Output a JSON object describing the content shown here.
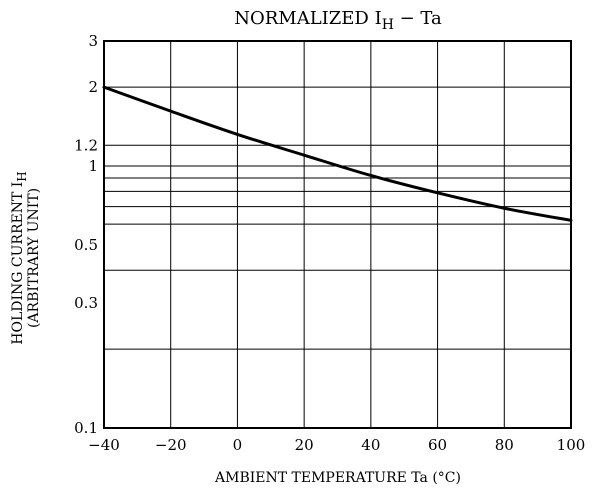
{
  "chart_data": {
    "type": "line",
    "title": "NORMALIZED I",
    "title_sub": "H",
    "title_suffix": " − Ta",
    "xlabel": "AMBIENT TEMPERATURE   Ta   (°C)",
    "ylabel_line1": "HOLDING CURRENT   I",
    "ylabel_line1_sub": "H",
    "ylabel_line2": "(ARBITRARY UNIT)",
    "xlim": [
      -40,
      100
    ],
    "ylim": [
      0.1,
      3
    ],
    "yscale": "log",
    "grid": true,
    "x_ticks": [
      -40,
      -20,
      0,
      20,
      40,
      60,
      80,
      100
    ],
    "x_tick_labels": [
      "−40",
      "−20",
      "0",
      "20",
      "40",
      "60",
      "80",
      "100"
    ],
    "y_gridlines": [
      0.2,
      0.4,
      0.6,
      0.7,
      0.8,
      0.9,
      1,
      1.2,
      2
    ],
    "y_ticks": [
      0.1,
      0.3,
      0.5,
      1,
      1.2,
      2,
      3
    ],
    "y_tick_labels": [
      "0.1",
      "0.3",
      "0.5",
      "1",
      "1.2",
      "2",
      "3"
    ],
    "series": [
      {
        "x": [
          -40,
          -20,
          0,
          20,
          40,
          60,
          80,
          100
        ],
        "y": [
          2.0,
          1.62,
          1.32,
          1.1,
          0.92,
          0.79,
          0.69,
          0.62
        ]
      }
    ]
  }
}
